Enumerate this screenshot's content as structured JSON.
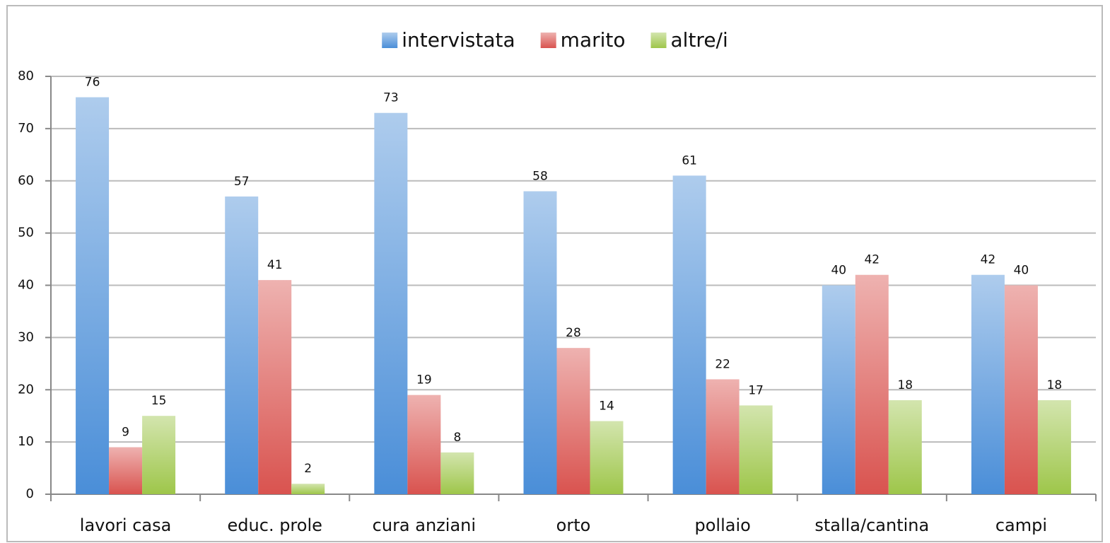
{
  "chart_data": {
    "type": "bar",
    "categories": [
      "lavori casa",
      "educ. prole",
      "cura anziani",
      "orto",
      "pollaio",
      "stalla/cantina",
      "campi"
    ],
    "series": [
      {
        "name": "intervistata",
        "color": "#4a8ed8",
        "values": [
          76,
          57,
          73,
          58,
          61,
          40,
          42
        ]
      },
      {
        "name": "marito",
        "color": "#d9534f",
        "values": [
          9,
          41,
          19,
          28,
          22,
          42,
          40
        ]
      },
      {
        "name": "altre/i",
        "color": "#9ec64a",
        "values": [
          15,
          2,
          8,
          14,
          17,
          18,
          18
        ]
      }
    ],
    "ylim": [
      0,
      80
    ],
    "yticks": [
      0,
      10,
      20,
      30,
      40,
      50,
      60,
      70,
      80
    ],
    "grid": true,
    "legend": "top"
  }
}
